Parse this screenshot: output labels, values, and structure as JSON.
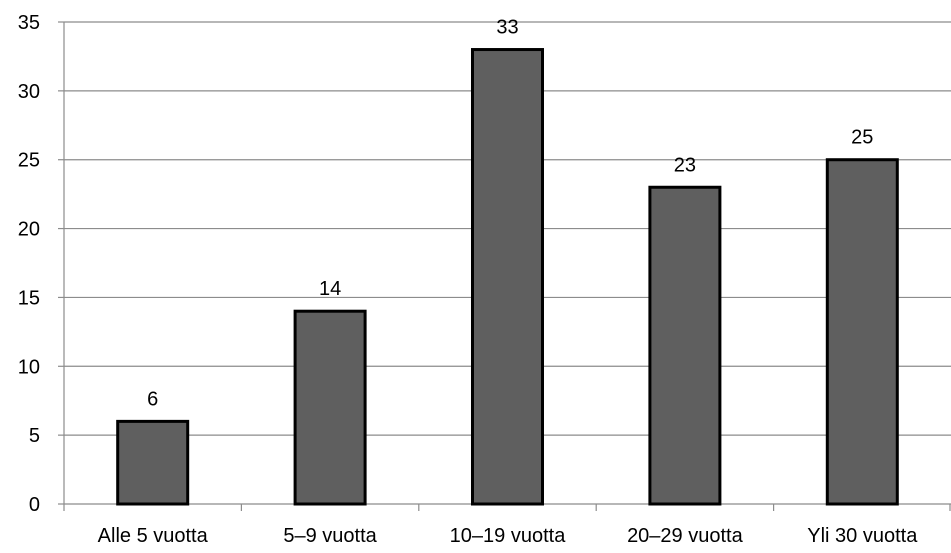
{
  "chart_data": {
    "type": "bar",
    "title": "",
    "xlabel": "",
    "ylabel": "",
    "categories": [
      "Alle 5 vuotta",
      "5–9 vuotta",
      "10–19 vuotta",
      "20–29 vuotta",
      "Yli 30 vuotta"
    ],
    "values": [
      6,
      14,
      33,
      23,
      25
    ],
    "data_labels": [
      "6",
      "14",
      "33",
      "23",
      "25"
    ],
    "ylim": [
      0,
      35
    ],
    "yticks": [
      0,
      5,
      10,
      15,
      20,
      25,
      30,
      35
    ],
    "ytick_labels": [
      "0",
      "5",
      "10",
      "15",
      "20",
      "25",
      "30",
      "35"
    ],
    "grid": true,
    "legend": "none",
    "colors": {
      "bar_fill": "#5f5f5f",
      "bar_stroke": "#000000",
      "grid": "#8c8c8c",
      "axis": "#8c8c8c",
      "text": "#000000"
    }
  }
}
